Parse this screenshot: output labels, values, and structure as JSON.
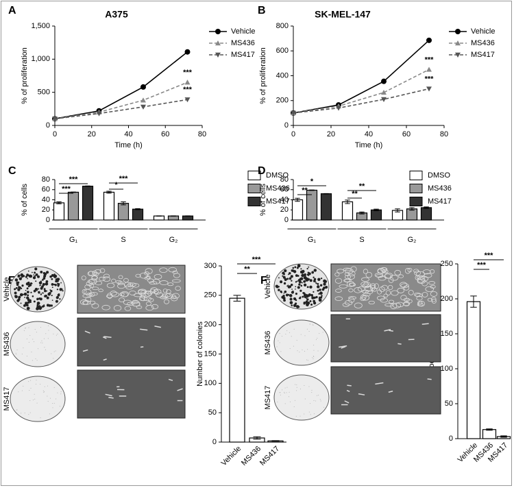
{
  "chart_data": [
    {
      "type": "line",
      "panel": "A",
      "title": "A375",
      "xlabel": "Time (h)",
      "ylabel": "% of proliferation",
      "x": [
        0,
        24,
        48,
        72
      ],
      "xlim": [
        0,
        80
      ],
      "xticks": [
        0,
        20,
        40,
        60,
        80
      ],
      "ylim": [
        0,
        1500
      ],
      "yticks": [
        0,
        500,
        {
          "value": 1000,
          "label": "1,000"
        },
        {
          "value": 1500,
          "label": "1,500"
        }
      ],
      "series": [
        {
          "name": "Vehicle",
          "color": "#000000",
          "style": "solid",
          "marker": "circle",
          "values": [
            100,
            220,
            580,
            1110
          ]
        },
        {
          "name": "MS436",
          "color": "#888888",
          "style": "dashed",
          "marker": "triangle-up",
          "values": [
            100,
            200,
            380,
            650
          ]
        },
        {
          "name": "MS417",
          "color": "#555555",
          "style": "dashed",
          "marker": "triangle-down",
          "values": [
            100,
            180,
            280,
            390
          ]
        }
      ],
      "annotations": [
        "***",
        "***"
      ]
    },
    {
      "type": "line",
      "panel": "B",
      "title": "SK-MEL-147",
      "xlabel": "Time (h)",
      "ylabel": "% of proliferation",
      "x": [
        0,
        24,
        48,
        72
      ],
      "xlim": [
        0,
        80
      ],
      "xticks": [
        0,
        20,
        40,
        60,
        80
      ],
      "ylim": [
        0,
        800
      ],
      "yticks": [
        0,
        200,
        400,
        600,
        800
      ],
      "series": [
        {
          "name": "Vehicle",
          "color": "#000000",
          "style": "solid",
          "marker": "circle",
          "values": [
            100,
            165,
            355,
            685
          ]
        },
        {
          "name": "MS436",
          "color": "#888888",
          "style": "dashed",
          "marker": "triangle-up",
          "values": [
            100,
            155,
            265,
            450
          ]
        },
        {
          "name": "MS417",
          "color": "#555555",
          "style": "dashed",
          "marker": "triangle-down",
          "values": [
            100,
            140,
            210,
            295
          ]
        }
      ],
      "annotations": [
        "***",
        "***"
      ]
    },
    {
      "type": "bar",
      "panel": "C",
      "ylabel": "% of cells",
      "categories": [
        "G₁",
        "S",
        "G₂"
      ],
      "ylim": [
        0,
        80
      ],
      "yticks": [
        0,
        20,
        40,
        60,
        80
      ],
      "series": [
        {
          "name": "DMSO",
          "color": "#ffffff",
          "values": [
            34,
            55,
            8
          ],
          "errors": [
            2,
            2,
            0.3
          ]
        },
        {
          "name": "MS436",
          "color": "#999999",
          "values": [
            55,
            33,
            8
          ],
          "errors": [
            0.5,
            3,
            0.3
          ]
        },
        {
          "name": "MS417",
          "color": "#333333",
          "values": [
            67,
            21.5,
            8
          ],
          "errors": [
            0.5,
            1,
            0.3
          ]
        }
      ],
      "annotations": [
        "***",
        "***",
        "*",
        "***"
      ]
    },
    {
      "type": "bar",
      "panel": "D",
      "ylabel": "% of cells",
      "categories": [
        "G₁",
        "S",
        "G₂"
      ],
      "ylim": [
        0,
        80
      ],
      "yticks": [
        0,
        20,
        40,
        60,
        80
      ],
      "series": [
        {
          "name": "DMSO",
          "color": "#ffffff",
          "values": [
            40,
            36,
            19
          ],
          "errors": [
            3,
            3.5,
            3
          ]
        },
        {
          "name": "MS436",
          "color": "#999999",
          "values": [
            59,
            14,
            22
          ],
          "errors": [
            0.5,
            2,
            2.5
          ]
        },
        {
          "name": "MS417",
          "color": "#333333",
          "values": [
            52,
            20,
            24.5
          ],
          "errors": [
            0.3,
            1.5,
            1.5
          ]
        }
      ],
      "annotations": [
        "*",
        "**",
        "**",
        "**"
      ]
    },
    {
      "type": "bar",
      "panel": "E",
      "ylabel": "Number of colonies",
      "image_labels": [
        "Vehicle",
        "MS436",
        "MS417"
      ],
      "categories": [
        "Vehicle",
        "MS436",
        "MS417"
      ],
      "values": [
        245,
        7,
        2
      ],
      "errors": [
        5,
        2,
        0.5
      ],
      "color": "#ffffff",
      "ylim": [
        0,
        300
      ],
      "yticks": [
        0,
        50,
        100,
        150,
        200,
        250,
        300
      ],
      "annotations": [
        "**",
        "***"
      ]
    },
    {
      "type": "bar",
      "panel": "F",
      "ylabel": "Number of colonies",
      "image_labels": [
        "Vehicle",
        "MS436",
        "MS417"
      ],
      "categories": [
        "Vehicle",
        "MS436",
        "MS417"
      ],
      "values": [
        196,
        13,
        3
      ],
      "errors": [
        8,
        1,
        1
      ],
      "color": "#ffffff",
      "ylim": [
        0,
        250
      ],
      "yticks": [
        0,
        50,
        100,
        150,
        200,
        250
      ],
      "annotations": [
        "***",
        "***"
      ]
    }
  ]
}
